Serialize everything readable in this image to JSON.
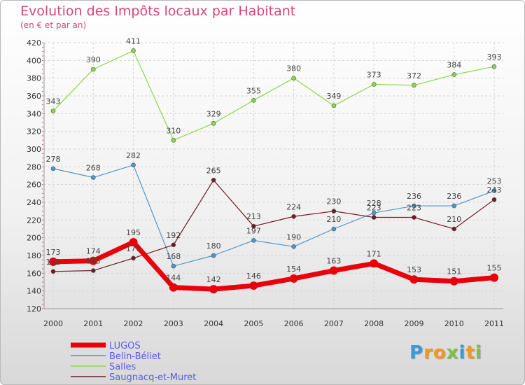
{
  "chart_data": {
    "type": "line",
    "title": "Evolution des Impôts locaux par Habitant",
    "subtitle": "(en € et par an)",
    "categories": [
      "2000",
      "2001",
      "2002",
      "2003",
      "2004",
      "2005",
      "2006",
      "2007",
      "2008",
      "2009",
      "2010",
      "2011"
    ],
    "ylim": [
      120,
      420
    ],
    "yticks": [
      120,
      140,
      160,
      180,
      200,
      220,
      240,
      260,
      280,
      300,
      320,
      340,
      360,
      380,
      400,
      420
    ],
    "grid": true,
    "legend_position": "bottom-left",
    "series": [
      {
        "name": "LUGOS",
        "color": "#e8000b",
        "values": [
          173,
          174,
          195,
          144,
          142,
          146,
          154,
          163,
          171,
          153,
          151,
          155
        ]
      },
      {
        "name": "Belin-Béliet",
        "color": "#4f96c8",
        "values": [
          278,
          268,
          282,
          168,
          180,
          197,
          190,
          210,
          228,
          236,
          236,
          253
        ]
      },
      {
        "name": "Salles",
        "color": "#8ed646",
        "values": [
          343,
          390,
          411,
          310,
          329,
          355,
          380,
          349,
          373,
          372,
          384,
          393
        ]
      },
      {
        "name": "Saugnacq-et-Muret",
        "color": "#6e1b25",
        "values": [
          162,
          163,
          177,
          192,
          265,
          213,
          224,
          230,
          223,
          223,
          210,
          243
        ]
      }
    ]
  },
  "logo": {
    "alt": "Proxiti",
    "letters": [
      {
        "ch": "P",
        "color": "#3a9ad9"
      },
      {
        "ch": "r",
        "color": "#f29a1f"
      },
      {
        "ch": "o",
        "color": "#f29a1f"
      },
      {
        "ch": "x",
        "color": "#7cc242"
      },
      {
        "ch": "i",
        "color": "#3a9ad9"
      },
      {
        "ch": "t",
        "color": "#f29a1f"
      },
      {
        "ch": "i",
        "color": "#7cc242"
      }
    ]
  }
}
